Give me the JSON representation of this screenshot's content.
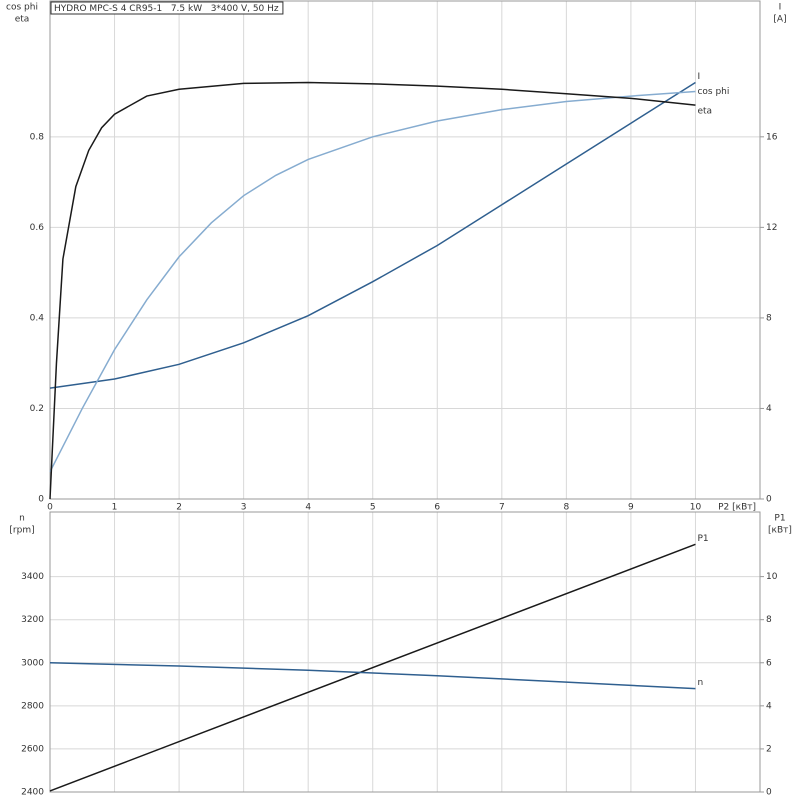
{
  "chart_data": [
    {
      "type": "line",
      "title": "HYDRO MPC-S 4 CR95-1   7.5 kW   3*400 V, 50 Hz",
      "x_label": "P2 [кВт]",
      "y_labels": [
        "cos phi",
        "eta"
      ],
      "y2_labels": [
        "I",
        "[A]"
      ],
      "xlim": [
        0,
        11
      ],
      "xticks": [
        0,
        1,
        2,
        3,
        4,
        5,
        6,
        7,
        8,
        9,
        10
      ],
      "ylim": [
        0,
        1.1
      ],
      "yticks": [
        0,
        0.2,
        0.4,
        0.6,
        0.8
      ],
      "y2lim": [
        0,
        22
      ],
      "y2ticks": [
        0,
        4,
        8,
        12,
        16
      ],
      "grid": true,
      "show_xtick_labels": true,
      "series": [
        {
          "name": "I",
          "color": "#2f5f8f",
          "axis": "y2",
          "x": [
            0,
            1,
            2,
            3,
            4,
            5,
            6,
            7,
            8,
            9,
            10
          ],
          "values": [
            4.9,
            5.3,
            5.95,
            6.9,
            8.1,
            9.6,
            11.2,
            13.0,
            14.8,
            16.6,
            18.4
          ]
        },
        {
          "name": "cos phi",
          "color": "#86acd0",
          "x": [
            0,
            0.5,
            1,
            1.5,
            2,
            2.5,
            3,
            3.5,
            4,
            5,
            6,
            7,
            8,
            9,
            10
          ],
          "values": [
            0.06,
            0.2,
            0.33,
            0.44,
            0.535,
            0.61,
            0.67,
            0.715,
            0.75,
            0.8,
            0.835,
            0.86,
            0.878,
            0.89,
            0.9
          ]
        },
        {
          "name": "eta",
          "color": "#1a1a1a",
          "x": [
            0,
            0.1,
            0.2,
            0.4,
            0.6,
            0.8,
            1,
            1.5,
            2,
            3,
            4,
            5,
            6,
            7,
            8,
            9,
            10
          ],
          "values": [
            0,
            0.3,
            0.53,
            0.69,
            0.77,
            0.82,
            0.85,
            0.89,
            0.905,
            0.918,
            0.92,
            0.917,
            0.912,
            0.905,
            0.895,
            0.885,
            0.87
          ]
        }
      ]
    },
    {
      "type": "line",
      "y_labels": [
        "n",
        "[rpm]"
      ],
      "y2_labels": [
        "P1",
        "[кВт]"
      ],
      "xlim": [
        0,
        11
      ],
      "xticks": [
        0,
        1,
        2,
        3,
        4,
        5,
        6,
        7,
        8,
        9,
        10
      ],
      "ylim": [
        2400,
        3700
      ],
      "yticks": [
        2400,
        2600,
        2800,
        3000,
        3200,
        3400
      ],
      "y2lim": [
        0,
        13
      ],
      "y2ticks": [
        0,
        2,
        4,
        6,
        8,
        10
      ],
      "grid": true,
      "show_xtick_labels": false,
      "series": [
        {
          "name": "P1",
          "color": "#1a1a1a",
          "axis": "y2",
          "x": [
            0,
            10
          ],
          "values": [
            0.05,
            11.5
          ]
        },
        {
          "name": "n",
          "color": "#2f5f8f",
          "x": [
            0,
            2,
            4,
            6,
            8,
            10
          ],
          "values": [
            3000,
            2985,
            2965,
            2940,
            2910,
            2880
          ]
        }
      ]
    }
  ]
}
